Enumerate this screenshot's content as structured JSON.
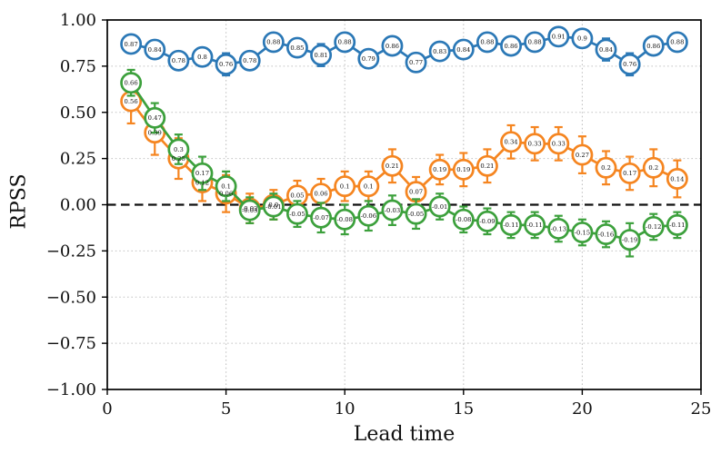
{
  "chart_data": {
    "type": "line",
    "title": "",
    "xlabel": "Lead time",
    "ylabel": "RPSS",
    "xlim": [
      0,
      25
    ],
    "ylim": [
      -1.0,
      1.0
    ],
    "xticks": [
      0,
      5,
      10,
      15,
      20,
      25
    ],
    "xtick_labels": [
      "0",
      "5",
      "10",
      "15",
      "20",
      "25"
    ],
    "yticks": [
      1.0,
      0.75,
      0.5,
      0.25,
      0.0,
      -0.25,
      -0.5,
      -0.75,
      -1.0
    ],
    "ytick_labels": [
      "1.00",
      "0.75",
      "0.50",
      "0.25",
      "0.00",
      "−0.25",
      "−0.50",
      "−0.75",
      "−1.00"
    ],
    "grid": "dotted",
    "grid_color": "#c4c4c4",
    "zero_line": {
      "y": 0,
      "style": "dashed",
      "color": "#111111"
    },
    "legend": null,
    "marker": "open-circle-with-value-label",
    "x": [
      1,
      2,
      3,
      4,
      5,
      6,
      7,
      8,
      9,
      10,
      11,
      12,
      13,
      14,
      15,
      16,
      17,
      18,
      19,
      20,
      21,
      22,
      23,
      24
    ],
    "series": [
      {
        "name": "series-blue",
        "color": "#2b78b6",
        "values": [
          0.87,
          0.84,
          0.78,
          0.8,
          0.76,
          0.78,
          0.88,
          0.85,
          0.81,
          0.88,
          0.79,
          0.86,
          0.77,
          0.83,
          0.84,
          0.88,
          0.86,
          0.88,
          0.91,
          0.9,
          0.84,
          0.76,
          0.86,
          0.88
        ],
        "labels": [
          "0.87",
          "0.84",
          "0.78",
          "0.8",
          "0.76",
          "0.78",
          "0.88",
          "0.85",
          "0.81",
          "0.88",
          "0.79",
          "0.86",
          "0.77",
          "0.83",
          "0.84",
          "0.88",
          "0.86",
          "0.88",
          "0.91",
          "0.9",
          "0.84",
          "0.76",
          "0.86",
          "0.88"
        ],
        "errors": [
          0.04,
          0.04,
          0.04,
          0.04,
          0.06,
          0.04,
          0.04,
          0.04,
          0.06,
          0.04,
          0.04,
          0.04,
          0.04,
          0.04,
          0.04,
          0.04,
          0.04,
          0.04,
          0.04,
          0.04,
          0.06,
          0.06,
          0.04,
          0.04
        ]
      },
      {
        "name": "series-orange",
        "color": "#f58520",
        "values": [
          0.56,
          0.39,
          0.25,
          0.12,
          0.06,
          -0.02,
          0.0,
          0.05,
          0.06,
          0.1,
          0.1,
          0.21,
          0.07,
          0.19,
          0.19,
          0.21,
          0.34,
          0.33,
          0.33,
          0.27,
          0.2,
          0.17,
          0.2,
          0.14
        ],
        "labels": [
          "0.56",
          "0.39",
          "0.25",
          "0.12",
          "0.06",
          "-0.02",
          "0.0",
          "0.05",
          "0.06",
          "0.1",
          "0.1",
          "0.21",
          "0.07",
          "0.19",
          "0.19",
          "0.21",
          "0.34",
          "0.33",
          "0.33",
          "0.27",
          "0.2",
          "0.17",
          "0.2",
          "0.14"
        ],
        "errors": [
          0.12,
          0.12,
          0.11,
          0.1,
          0.1,
          0.08,
          0.08,
          0.08,
          0.08,
          0.08,
          0.08,
          0.09,
          0.08,
          0.08,
          0.09,
          0.09,
          0.09,
          0.09,
          0.09,
          0.1,
          0.09,
          0.09,
          0.1,
          0.1
        ]
      },
      {
        "name": "series-green",
        "color": "#3ca03c",
        "values": [
          0.66,
          0.47,
          0.3,
          0.17,
          0.1,
          -0.03,
          -0.01,
          -0.05,
          -0.07,
          -0.08,
          -0.06,
          -0.03,
          -0.05,
          -0.01,
          -0.08,
          -0.09,
          -0.11,
          -0.11,
          -0.13,
          -0.15,
          -0.16,
          -0.19,
          -0.12,
          -0.11
        ],
        "labels": [
          "0.66",
          "0.47",
          "0.3",
          "0.17",
          "0.1",
          "-0.03",
          "-0.01",
          "-0.05",
          "-0.07",
          "-0.08",
          "-0.06",
          "-0.03",
          "-0.05",
          "-0.01",
          "-0.08",
          "-0.09",
          "-0.11",
          "-0.11",
          "-0.13",
          "-0.15",
          "-0.16",
          "-0.19",
          "-0.12",
          "-0.11"
        ],
        "errors": [
          0.07,
          0.08,
          0.08,
          0.09,
          0.08,
          0.07,
          0.07,
          0.07,
          0.08,
          0.08,
          0.08,
          0.08,
          0.08,
          0.07,
          0.07,
          0.07,
          0.07,
          0.07,
          0.07,
          0.07,
          0.07,
          0.09,
          0.07,
          0.07
        ]
      }
    ]
  }
}
